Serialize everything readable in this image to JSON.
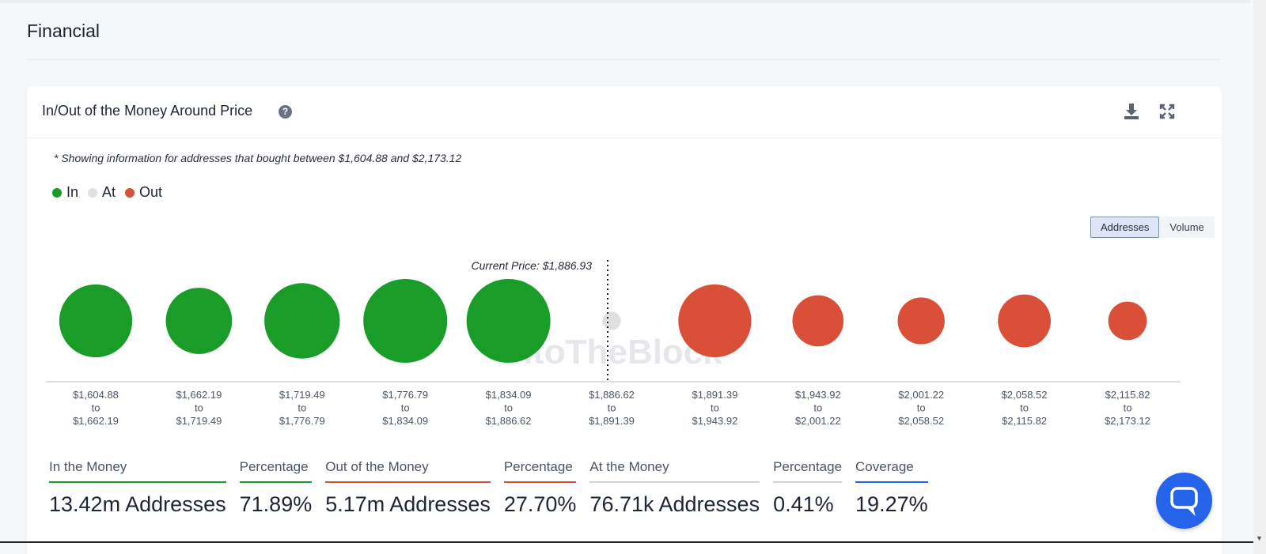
{
  "section": {
    "title": "Financial"
  },
  "card": {
    "title": "In/Out of the Money Around Price",
    "help_icon": "?",
    "note": "* Showing information for addresses that bought between $1,604.88 and $2,173.12",
    "legend": [
      {
        "label": "In",
        "color": "#1a9c28"
      },
      {
        "label": "At",
        "color": "#e0e0e0"
      },
      {
        "label": "Out",
        "color": "#d94f37"
      }
    ],
    "toggle": {
      "addresses": "Addresses",
      "volume": "Volume",
      "selected": "Addresses"
    },
    "icons": {
      "download": "download-icon",
      "expand": "expand-icon"
    }
  },
  "chart_data": {
    "type": "bubble",
    "current_price_label": "Current Price: $1,886.93",
    "current_price_after_bucket_index": 5,
    "watermark": "IntoTheBlock",
    "buckets": [
      {
        "from": "$1,604.88",
        "to_word": "to",
        "to": "$1,662.19",
        "status": "in",
        "relative_size": 0.87
      },
      {
        "from": "$1,662.19",
        "to_word": "to",
        "to": "$1,719.49",
        "status": "in",
        "relative_size": 0.79
      },
      {
        "from": "$1,719.49",
        "to_word": "to",
        "to": "$1,776.79",
        "status": "in",
        "relative_size": 0.9
      },
      {
        "from": "$1,776.79",
        "to_word": "to",
        "to": "$1,834.09",
        "status": "in",
        "relative_size": 1.0
      },
      {
        "from": "$1,834.09",
        "to_word": "to",
        "to": "$1,886.62",
        "status": "in",
        "relative_size": 1.0
      },
      {
        "from": "$1,886.62",
        "to_word": "to",
        "to": "$1,891.39",
        "status": "at",
        "relative_size": 0.22
      },
      {
        "from": "$1,891.39",
        "to_word": "to",
        "to": "$1,943.92",
        "status": "out",
        "relative_size": 0.87
      },
      {
        "from": "$1,943.92",
        "to_word": "to",
        "to": "$2,001.22",
        "status": "out",
        "relative_size": 0.61
      },
      {
        "from": "$2,001.22",
        "to_word": "to",
        "to": "$2,058.52",
        "status": "out",
        "relative_size": 0.56
      },
      {
        "from": "$2,058.52",
        "to_word": "to",
        "to": "$2,115.82",
        "status": "out",
        "relative_size": 0.63
      },
      {
        "from": "$2,115.82",
        "to_word": "to",
        "to": "$2,173.12",
        "status": "out",
        "relative_size": 0.46
      }
    ],
    "colors": {
      "in": "#1a9c28",
      "at": "#e0e0e0",
      "out": "#d94f37"
    }
  },
  "stats": [
    {
      "label": "In the Money",
      "value": "13.42m Addresses",
      "color": "#1a9c28"
    },
    {
      "label": "Percentage",
      "value": "71.89%",
      "color": "#1a9c28"
    },
    {
      "label": "Out of the Money",
      "value": "5.17m Addresses",
      "color": "#d94f37"
    },
    {
      "label": "Percentage",
      "value": "27.70%",
      "color": "#d94f37"
    },
    {
      "label": "At the Money",
      "value": "76.71k Addresses",
      "color": "#d1d5db"
    },
    {
      "label": "Percentage",
      "value": "0.41%",
      "color": "#d1d5db"
    },
    {
      "label": "Coverage",
      "value": "19.27%",
      "color": "#2563eb"
    }
  ],
  "chat": {
    "icon": "chat-bubble-icon"
  }
}
